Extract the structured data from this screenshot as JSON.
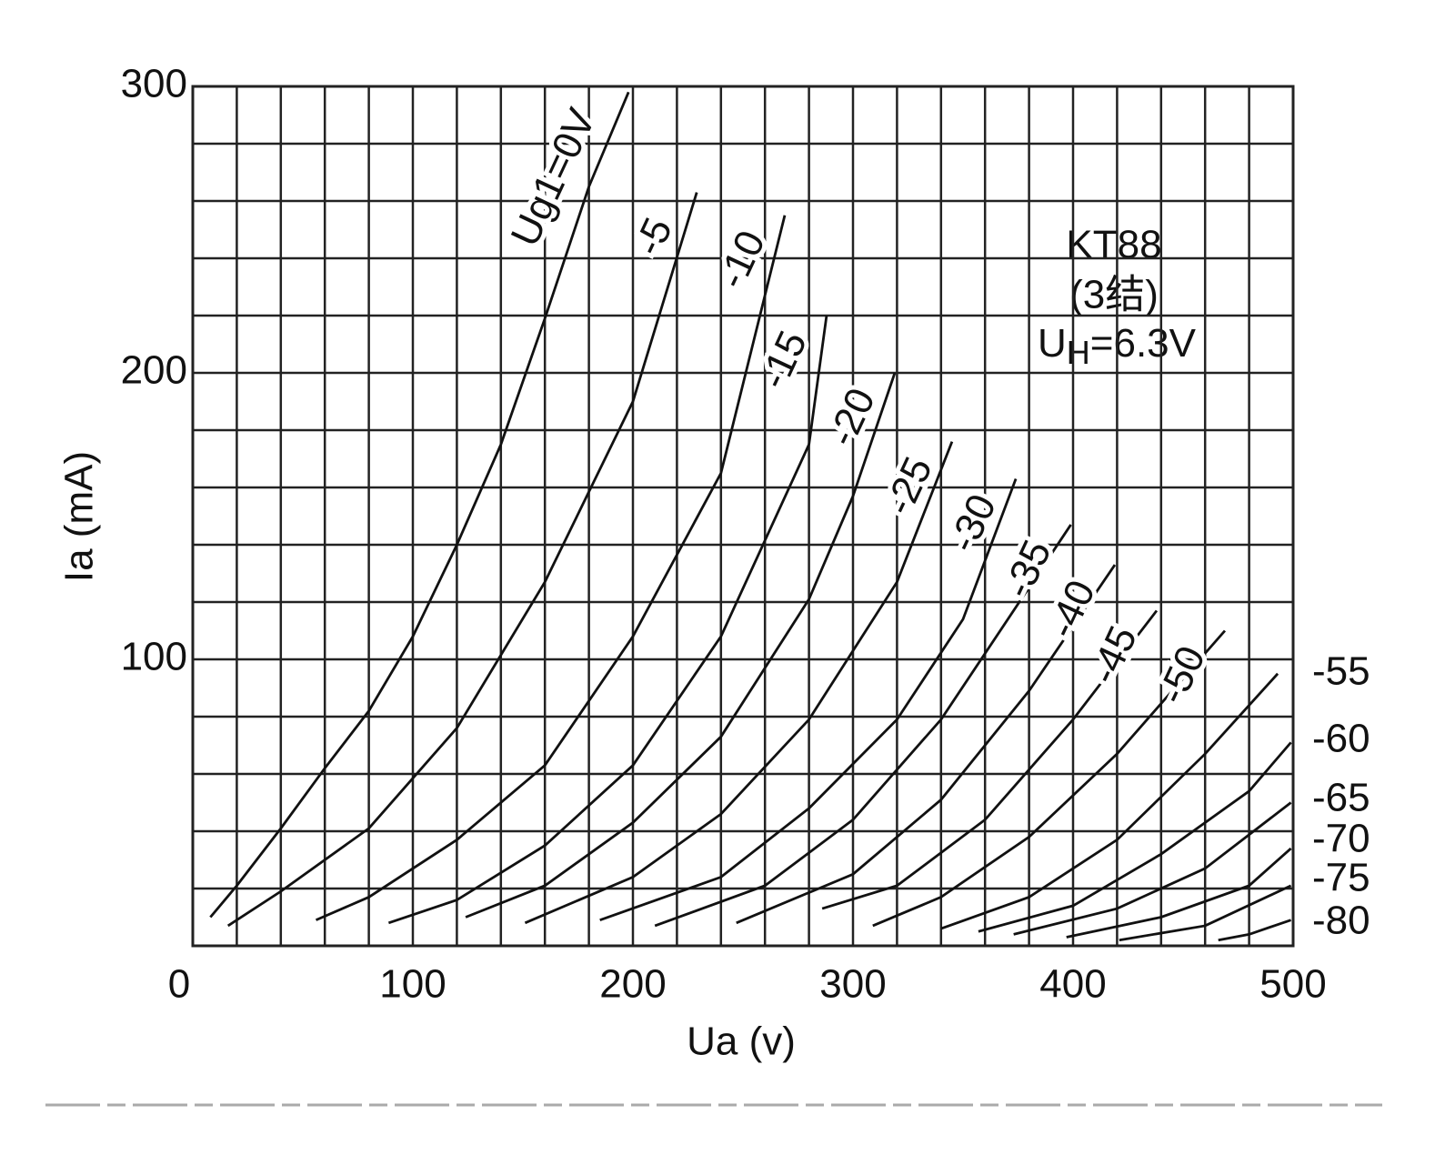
{
  "chart_data": {
    "type": "line",
    "xlabel": "Ua (v)",
    "ylabel": "Ia  (mA)",
    "annotation": [
      "KT88",
      "(3结)"
    ],
    "annotation_uh": [
      "U",
      "H",
      "=6.3V"
    ],
    "xlim": [
      0,
      500
    ],
    "ylim": [
      0,
      300
    ],
    "xticks": [
      0,
      100,
      200,
      300,
      400,
      500
    ],
    "yticks": [
      100,
      200,
      300
    ],
    "xgrid": [
      0,
      20,
      40,
      60,
      80,
      100,
      120,
      140,
      160,
      180,
      200,
      220,
      240,
      260,
      280,
      300,
      320,
      340,
      360,
      380,
      400,
      420,
      440,
      460,
      480,
      500
    ],
    "ygrid": [
      0,
      20,
      40,
      60,
      80,
      100,
      120,
      140,
      160,
      180,
      200,
      220,
      240,
      260,
      280,
      300
    ],
    "grid": true,
    "series": [
      {
        "name": "Ug1=0V",
        "color": "#111111",
        "x": [
          8,
          20,
          40,
          60,
          80,
          100,
          120,
          140,
          160,
          180,
          198
        ],
        "values": [
          10,
          21,
          41,
          62,
          82,
          108,
          140,
          175,
          219,
          265,
          298
        ]
      },
      {
        "name": "-5",
        "color": "#111111",
        "x": [
          16,
          40,
          80,
          120,
          160,
          200,
          229
        ],
        "values": [
          7,
          19,
          41,
          76,
          127,
          190,
          263
        ]
      },
      {
        "name": "-10",
        "color": "#111111",
        "x": [
          56,
          80,
          120,
          160,
          200,
          240,
          269
        ],
        "values": [
          9,
          17,
          37,
          63,
          108,
          165,
          255
        ]
      },
      {
        "name": "-15",
        "color": "#111111",
        "x": [
          89,
          120,
          160,
          200,
          240,
          280,
          288
        ],
        "values": [
          8,
          16,
          35,
          63,
          108,
          175,
          220
        ]
      },
      {
        "name": "-20",
        "color": "#111111",
        "x": [
          124,
          160,
          200,
          240,
          280,
          300,
          319
        ],
        "values": [
          10,
          21,
          43,
          73,
          121,
          157,
          200
        ]
      },
      {
        "name": "-25",
        "color": "#111111",
        "x": [
          151,
          200,
          240,
          280,
          320,
          345
        ],
        "values": [
          8,
          24,
          46,
          79,
          127,
          176
        ]
      },
      {
        "name": "-30",
        "color": "#111111",
        "x": [
          185,
          240,
          280,
          320,
          350,
          374
        ],
        "values": [
          9,
          24,
          48,
          79,
          114,
          163
        ]
      },
      {
        "name": "-35",
        "color": "#111111",
        "x": [
          210,
          260,
          300,
          340,
          399
        ],
        "values": [
          7,
          21,
          44,
          79,
          147
        ]
      },
      {
        "name": "-40",
        "color": "#111111",
        "x": [
          247,
          300,
          340,
          380,
          419
        ],
        "values": [
          8,
          25,
          51,
          89,
          133
        ]
      },
      {
        "name": "-45",
        "color": "#111111",
        "x": [
          286,
          320,
          360,
          400,
          438
        ],
        "values": [
          13,
          21,
          44,
          79,
          117
        ]
      },
      {
        "name": "-50",
        "color": "#111111",
        "x": [
          309,
          340,
          380,
          420,
          469
        ],
        "values": [
          7,
          17,
          38,
          67,
          110
        ]
      },
      {
        "name": "-55",
        "color": "#111111",
        "x": [
          340,
          380,
          420,
          460,
          493
        ],
        "values": [
          6,
          17,
          37,
          67,
          95
        ]
      },
      {
        "name": "-60",
        "color": "#111111",
        "x": [
          357,
          400,
          440,
          480,
          499
        ],
        "values": [
          5,
          14,
          32,
          54,
          71
        ]
      },
      {
        "name": "-65",
        "color": "#111111",
        "x": [
          373,
          420,
          460,
          499
        ],
        "values": [
          4,
          13,
          27,
          50
        ]
      },
      {
        "name": "-70",
        "color": "#111111",
        "x": [
          397,
          440,
          480,
          499
        ],
        "values": [
          3,
          10,
          21,
          34
        ]
      },
      {
        "name": "-75",
        "color": "#111111",
        "x": [
          421,
          460,
          499
        ],
        "values": [
          2,
          7,
          21
        ]
      },
      {
        "name": "-80",
        "color": "#111111",
        "x": [
          466,
          480,
          499
        ],
        "values": [
          2,
          4,
          9
        ]
      }
    ]
  }
}
